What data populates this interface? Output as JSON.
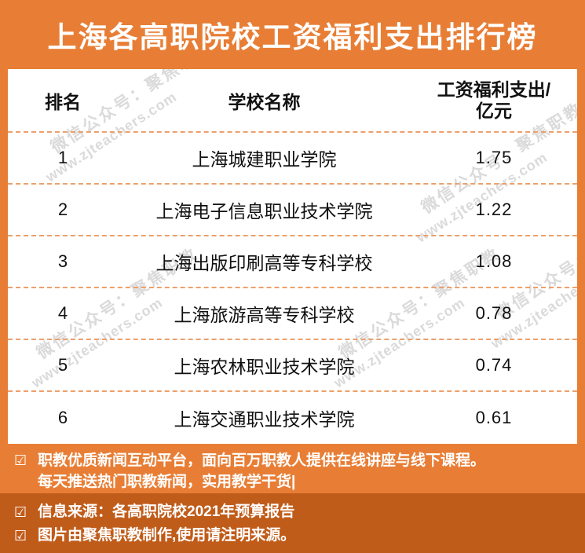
{
  "page": {
    "title": "上海各高职院校工资福利支出排行榜"
  },
  "table": {
    "header": {
      "rank": "排名",
      "school": "学校名称",
      "value_line1": "工资福利支出/",
      "value_line2": "亿元"
    },
    "rows": [
      {
        "rank": "1",
        "school": "上海城建职业学院",
        "value": "1.75"
      },
      {
        "rank": "2",
        "school": "上海电子信息职业技术学院",
        "value": "1.22"
      },
      {
        "rank": "3",
        "school": "上海出版印刷高等专科学校",
        "value": "1.08"
      },
      {
        "rank": "4",
        "school": "上海旅游高等专科学校",
        "value": "0.78"
      },
      {
        "rank": "5",
        "school": "上海农林职业技术学院",
        "value": "0.74"
      },
      {
        "rank": "6",
        "school": "上海交通职业技术学院",
        "value": "0.61"
      }
    ]
  },
  "watermark": {
    "line1": "微信公众号：聚焦职教",
    "line2": "www.zjteachers.com"
  },
  "footer": {
    "checkbox_glyph": "☑",
    "intro_line1": "职教优质新闻互动平台，面向百万职教人提供在线讲座与线下课程。",
    "intro_line2": "每天推送热门职教新闻，实用教学干货|",
    "source": "信息来源：各高职院校2021年预算报告",
    "credit": "图片由聚焦职教制作,使用请注明来源。"
  },
  "colors": {
    "primary_orange": "#E87E35",
    "dark_orange": "#C05C1A",
    "dashed_line": "#ECA06B",
    "text_black": "#111111",
    "watermark_gray": "#C3C3C3"
  },
  "chart_data": {
    "type": "table",
    "title": "上海各高职院校工资福利支出排行榜",
    "columns": [
      "排名",
      "学校名称",
      "工资福利支出/亿元"
    ],
    "unit": "亿元",
    "rows": [
      [
        1,
        "上海城建职业学院",
        1.75
      ],
      [
        2,
        "上海电子信息职业技术学院",
        1.22
      ],
      [
        3,
        "上海出版印刷高等专科学校",
        1.08
      ],
      [
        4,
        "上海旅游高等专科学校",
        0.78
      ],
      [
        5,
        "上海农林职业技术学院",
        0.74
      ],
      [
        6,
        "上海交通职业技术学院",
        0.61
      ]
    ],
    "source_note": "信息来源：各高职院校2021年预算报告"
  }
}
